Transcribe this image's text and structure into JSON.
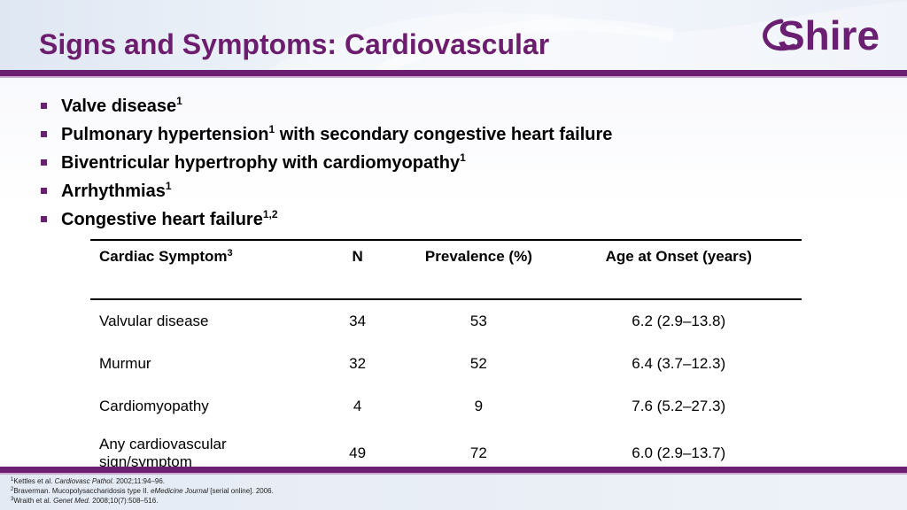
{
  "title": "Signs and Symptoms: Cardiovascular",
  "logo": {
    "text": "Shire",
    "color": "#6b1f72"
  },
  "colors": {
    "accent": "#6b1f72",
    "title": "#6c1d6e"
  },
  "bullets": [
    {
      "text": "Valve disease",
      "sup": "1"
    },
    {
      "text": "Pulmonary hypertension",
      "sup": "1",
      "after": " with secondary congestive heart failure"
    },
    {
      "text": "Biventricular hypertrophy with cardiomyopathy",
      "sup": "1"
    },
    {
      "text": "Arrhythmias",
      "sup": "1"
    },
    {
      "text": "Congestive heart failure",
      "sup": "1,2"
    }
  ],
  "table": {
    "headers": {
      "symptom": "Cardiac Symptom",
      "symptom_sup": "3",
      "n": "N",
      "prevalence": "Prevalence (%)",
      "onset": "Age at Onset (years)"
    },
    "rows": [
      {
        "symptom": "Valvular disease",
        "n": "34",
        "prevalence": "53",
        "onset": "6.2 (2.9–13.8)"
      },
      {
        "symptom": "Murmur",
        "n": "32",
        "prevalence": "52",
        "onset": "6.4 (3.7–12.3)"
      },
      {
        "symptom": "Cardiomyopathy",
        "n": "4",
        "prevalence": "9",
        "onset": "7.6 (5.2–27.3)"
      },
      {
        "symptom_line1": "Any cardiovascular",
        "symptom_line2": "sign/symptom",
        "n": "49",
        "prevalence": "72",
        "onset": "6.0 (2.9–13.7)"
      }
    ]
  },
  "references": [
    {
      "sup": "1",
      "pre": "Kettles et al. ",
      "ital": "Cardiovasc Pathol.",
      "post": " 2002;11:94–96."
    },
    {
      "sup": "2",
      "pre": "Braverman. Mucopolysaccharidosis type II. ",
      "ital": "eMedicine Journal",
      "post": " [serial online]. 2006."
    },
    {
      "sup": "3",
      "pre": "Wraith et al. ",
      "ital": "Genet Med.",
      "post": " 2008;10(7):508–516."
    }
  ]
}
